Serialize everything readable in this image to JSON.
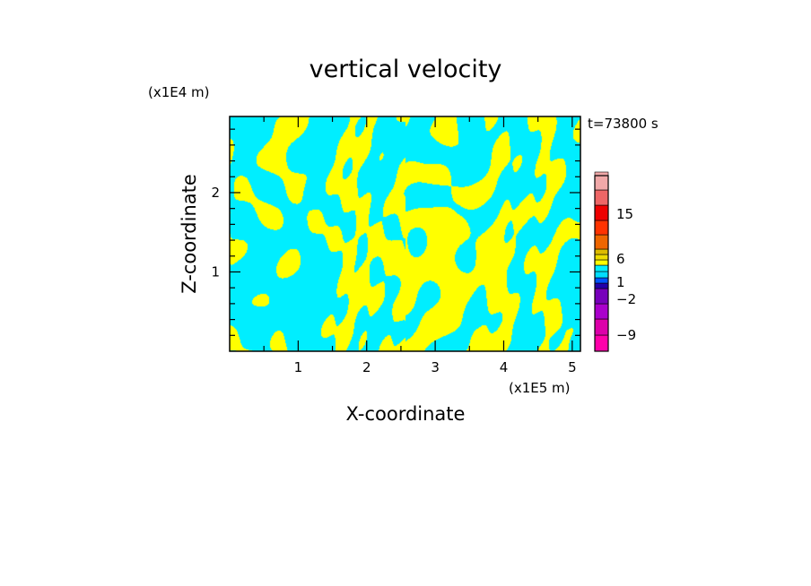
{
  "chart_data": {
    "type": "heatmap",
    "title": "vertical velocity",
    "xlabel": "X-coordinate",
    "ylabel": "Z-coordinate",
    "x_scale_label": "(x1E5 m)",
    "y_scale_label": "(x1E4 m)",
    "time_label": "t=73800 s",
    "xlim": [
      0,
      5.12
    ],
    "ylim": [
      0,
      2.96
    ],
    "x_ticks": [
      1,
      2,
      3,
      4,
      5
    ],
    "y_ticks": [
      1,
      2
    ],
    "x_tick_labels": [
      "1",
      "2",
      "3",
      "4",
      "5"
    ],
    "y_tick_labels": [
      "1",
      "2"
    ],
    "colorbar": {
      "levels": [
        {
          "value": -11,
          "color": "#ff00aa"
        },
        {
          "value": -9,
          "color": "#dd00aa"
        },
        {
          "value": -7,
          "color": "#aa00cc"
        },
        {
          "value": -5,
          "color": "#7700bb"
        },
        {
          "value": -4,
          "color": "#2200aa"
        },
        {
          "value": -3,
          "color": "#0055ff"
        },
        {
          "value": -2,
          "color": "#00ddff"
        },
        {
          "value": 0,
          "color": "#00eeff"
        },
        {
          "value": 1,
          "color": "#ffff00"
        },
        {
          "value": 2,
          "color": "#eedd00"
        },
        {
          "value": 3,
          "color": "#ddbb00"
        },
        {
          "value": 5,
          "color": "#ee6600"
        },
        {
          "value": 6,
          "color": "#ff3300"
        },
        {
          "value": 9,
          "color": "#ee0000"
        },
        {
          "value": 12,
          "color": "#ee6666"
        },
        {
          "value": 15,
          "color": "#f0a8a8"
        },
        {
          "value": 18,
          "color": "#fcf0f0"
        }
      ],
      "tick_labels": [
        "15",
        "6",
        "1",
        "−2",
        "−9"
      ]
    },
    "field_colors": {
      "updraft": "#ffff00",
      "downdraft": "#00eeff"
    }
  }
}
